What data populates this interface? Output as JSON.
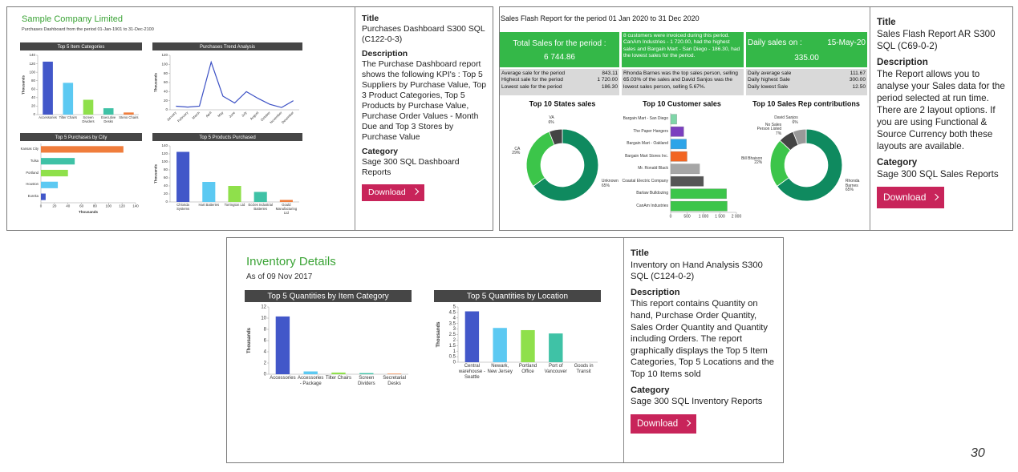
{
  "page_number": "30",
  "cards": [
    {
      "preview": {
        "heading": "Sample Company Limited",
        "subheading": "Purchases Dashboard from the period 01-Jan-1901 to 31-Dec-2100",
        "charts": [
          {
            "type": "bar",
            "title": "Top 5 Item Categories",
            "y_label": "Thousands",
            "categories": [
              "Accessories",
              "Tilter Chairs",
              "Screen Dividers",
              "Executive Desks",
              "Steno Chairs"
            ],
            "values": [
              125,
              75,
              35,
              15,
              5
            ],
            "colors": [
              "#4257c9",
              "#5cc9f2",
              "#8fe04b",
              "#3fc2a6",
              "#f07d3c"
            ],
            "ylim": [
              0,
              140
            ],
            "yticks": [
              0,
              20,
              40,
              60,
              80,
              100,
              120,
              140
            ]
          },
          {
            "type": "line",
            "title": "Purchases Trend Analysis",
            "y_label": "Thousands",
            "categories": [
              "January",
              "February",
              "March",
              "April",
              "May",
              "June",
              "July",
              "August",
              "October",
              "November",
              "December"
            ],
            "values": [
              8,
              6,
              8,
              105,
              30,
              15,
              40,
              25,
              12,
              5,
              20
            ],
            "color": "#3a4fc4",
            "ylim": [
              0,
              120
            ],
            "yticks": [
              0,
              20,
              40,
              60,
              80,
              100,
              120
            ]
          },
          {
            "type": "hbar",
            "title": "Top 5 Purchases by City",
            "x_label": "Thousands",
            "categories": [
              "Kansas City",
              "Tulsa",
              "Portland",
              "Houston",
              "Eureka"
            ],
            "values": [
              122,
              50,
              40,
              25,
              7
            ],
            "colors": [
              "#f07d3c",
              "#3fc2a6",
              "#8fe04b",
              "#5cc9f2",
              "#4257c9"
            ],
            "xlim": [
              0,
              140
            ],
            "xticks": [
              0,
              20,
              40,
              60,
              80,
              100,
              120,
              140
            ]
          },
          {
            "type": "bar",
            "title": "Top 5 Products Purchased",
            "y_label": "Thousands",
            "categories": [
              "Chlorida Systems",
              "Hart Batteries",
              "Torrington Ltd",
              "Eccles Industrial Batteries",
              "Gould Manufacturing Ltd"
            ],
            "values": [
              125,
              50,
              40,
              25,
              5
            ],
            "colors": [
              "#4257c9",
              "#5cc9f2",
              "#8fe04b",
              "#3fc2a6",
              "#f07d3c"
            ],
            "ylim": [
              0,
              140
            ],
            "yticks": [
              0,
              20,
              40,
              60,
              80,
              100,
              120,
              140
            ]
          }
        ]
      },
      "info": {
        "title_label": "Title",
        "title": "Purchases Dashboard S300 SQL (C122-0-3)",
        "description_label": "Description",
        "description": "The Purchase Dashboard report shows the following KPI's : Top 5 Suppliers by Purchase Value, Top 3 Product Categories, Top 5 Products by Purchase Value, Purchase Order Values - Month Due and Top 3 Stores by Purchase Value",
        "category_label": "Category",
        "category": "Sage 300 SQL Dashboard Reports",
        "download": "Download"
      }
    },
    {
      "preview": {
        "heading": "Sales Flash Report for the period 01 Jan 2020 to 31 Dec 2020",
        "kpis": {
          "total_label": "Total Sales for the period :",
          "total": "6 744.86",
          "note": "8 customers were invoiced during this period. CanAm Industries - 1 720.00, had the highest sales and Bargain Mart - San Diego - 186.30, had the lowest sales for the period.",
          "daily_label": "Daily sales on :",
          "daily_date": "15-May-20",
          "daily_total": "335.00"
        },
        "stats_left": [
          [
            "Average sale for the period",
            "843.11"
          ],
          [
            "Highest sale for the period",
            "1 720.00"
          ],
          [
            "Lowest sale for the period",
            "186.30"
          ]
        ],
        "stats_note": "Rhonda Barnes was the top sales person, selling 65.03% of the sales and David Sanjos was the lowest sales person, selling 5.67%.",
        "stats_right": [
          [
            "Daily average sale",
            "111.67"
          ],
          [
            "Daily highest Sale",
            "300.00"
          ],
          [
            "Daily lowest Sale",
            "12.50"
          ]
        ],
        "charts": [
          {
            "type": "pie",
            "title": "Top 10 States sales",
            "categories": [
              "Unknown",
              "CA",
              "VA"
            ],
            "values": [
              65,
              29,
              6
            ],
            "value_labels": [
              "65%",
              "29%",
              "6%"
            ],
            "colors": [
              "#0f8a5f",
              "#3cc54a",
              "#444444"
            ]
          },
          {
            "type": "hbar",
            "title": "Top 10 Customer sales",
            "categories": [
              "Bargain Mart - San Diego",
              "The Paper Hangers",
              "Bargain Mart - Oakland",
              "Bargain Mart Stores Inc.",
              "Mr. Ronald Black",
              "Coastal Electric Company",
              "Barlaw Bulldozing",
              "CanAm Industries"
            ],
            "values": [
              186.3,
              400,
              480,
              500,
              880,
              1000,
              1700,
              1720
            ],
            "colors": [
              "#7fd6a8",
              "#7b3fbf",
              "#2ea4e8",
              "#f26522",
              "#a6a6a6",
              "#555555",
              "#3cc54a",
              "#3cc54a"
            ],
            "xlim": [
              0,
              2000
            ],
            "xticks": [
              0,
              500,
              {
                "value": 1000,
                "label": "1 000"
              },
              {
                "value": 1500,
                "label": "1 500"
              },
              {
                "value": 2000,
                "label": "2 000"
              }
            ]
          },
          {
            "type": "pie",
            "title": "Top 10 Sales Rep contributions",
            "categories": [
              "Rhonda Barnes",
              "Bill Bhaison",
              "No Sales Person Listed",
              "David Sanjos"
            ],
            "values": [
              65,
              22,
              7,
              6
            ],
            "value_labels": [
              "65%",
              "22%",
              "7%",
              "6%"
            ],
            "colors": [
              "#0f8a5f",
              "#3cc54a",
              "#444444",
              "#999999"
            ]
          }
        ]
      },
      "info": {
        "title_label": "Title",
        "title": "Sales Flash Report AR S300 SQL (C69-0-2)",
        "description_label": "Description",
        "description": "The Report allows you to analyse your Sales data for the period selected at run time. There are 2 layout options. If you are using Functional & Source Currency both these layouts are available.",
        "category_label": "Category",
        "category": "Sage 300 SQL Sales Reports",
        "download": "Download"
      }
    },
    {
      "preview": {
        "heading": "Inventory Details",
        "subheading": "As of 09 Nov 2017",
        "charts": [
          {
            "type": "bar",
            "title": "Top 5 Quantities by Item Category",
            "y_label": "Thousands",
            "categories": [
              "Accessories",
              "Accessories - Package",
              "Tilter Chairs",
              "Screen Dividers",
              "Secretarial Desks"
            ],
            "values": [
              10.3,
              0.5,
              0.3,
              0.2,
              0.1
            ],
            "colors": [
              "#4257c9",
              "#5cc9f2",
              "#8fe04b",
              "#3fc2a6",
              "#f07d3c"
            ],
            "ylim": [
              0,
              12
            ],
            "yticks": [
              0,
              2,
              4,
              6,
              8,
              10,
              12
            ]
          },
          {
            "type": "bar",
            "title": "Top 5 Quantities by Location",
            "y_label": "Thousands",
            "categories": [
              "Central warehouse - Seattle",
              "Newark, New Jersey",
              "Portland Office",
              "Port of Vancouver",
              "Goods in Transit"
            ],
            "values": [
              4.6,
              3.1,
              2.9,
              2.6,
              0
            ],
            "colors": [
              "#4257c9",
              "#5cc9f2",
              "#8fe04b",
              "#3fc2a6",
              "#f07d3c"
            ],
            "ylim": [
              0,
              5
            ],
            "yticks": [
              0,
              0.5,
              1,
              1.5,
              2,
              2.5,
              3,
              3.5,
              4,
              4.5,
              5
            ]
          }
        ]
      },
      "info": {
        "title_label": "Title",
        "title": "Inventory on Hand Analysis S300 SQL (C124-0-2)",
        "description_label": "Description",
        "description": "This report contains Quantity on hand, Purchase Order Quantity, Sales Order Quantity and Quantity including Orders. The report graphically displays the Top 5 Item Categories, Top 5 Locations and the Top 10 Items sold",
        "category_label": "Category",
        "category": "Sage 300 SQL Inventory Reports",
        "download": "Download"
      }
    }
  ]
}
